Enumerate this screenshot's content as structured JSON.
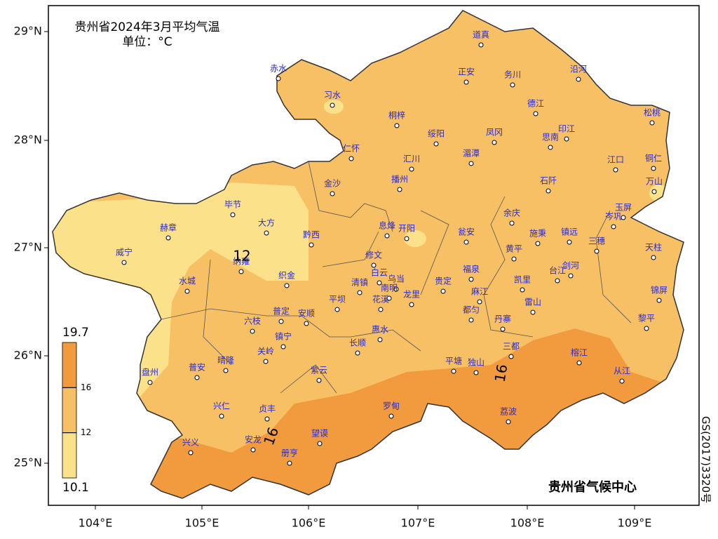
{
  "title": "贵州省2024年3月平均气温",
  "unit": "单位：°C",
  "colors": [
    "#f19a3e",
    "#f7c065",
    "#fbe28a"
  ],
  "legend": {
    "max": 19.7,
    "min": 10.1,
    "ticks": [
      16,
      12
    ]
  },
  "axes": {
    "lon_labels": [
      "104°E",
      "105°E",
      "106°E",
      "107°E",
      "108°E",
      "109°E"
    ],
    "lat_labels": [
      "29°N",
      "28°N",
      "27°N",
      "26°N",
      "25°N"
    ]
  },
  "stations": [
    "赤水",
    "习水",
    "道真",
    "正安",
    "务川",
    "沿河",
    "德江",
    "桐梓",
    "绥阳",
    "凤冈",
    "印江",
    "思南",
    "松桃",
    "仁怀",
    "汇川",
    "湄潭",
    "江口",
    "铜仁",
    "播州",
    "石阡",
    "万山",
    "金沙",
    "毕节",
    "大方",
    "息烽",
    "开阳",
    "瓮安",
    "余庆",
    "施秉",
    "镇远",
    "岑巩",
    "玉屏",
    "赫章",
    "黔西",
    "三穗",
    "天柱",
    "威宁",
    "纳雍",
    "修文",
    "白云",
    "黄平",
    "乌当",
    "织金",
    "福泉",
    "剑河",
    "台江",
    "水城",
    "清镇",
    "南明",
    "贵定",
    "凯里",
    "锦屏",
    "平坝",
    "花溪",
    "龙里",
    "麻江",
    "雷山",
    "都匀",
    "普定",
    "安顺",
    "六枝",
    "丹寨",
    "黎平",
    "惠水",
    "镇宁",
    "长顺",
    "关岭",
    "三都",
    "榕江",
    "盘州",
    "普安",
    "晴隆",
    "平塘",
    "独山",
    "从江",
    "紫云",
    "兴仁",
    "贞丰",
    "罗甸",
    "荔波",
    "兴义",
    "安龙",
    "望谟",
    "册亨"
  ],
  "contour_labels": [
    12,
    16,
    16
  ],
  "credit": "贵州省气候中心",
  "map_number": "GS(2017)3320号"
}
